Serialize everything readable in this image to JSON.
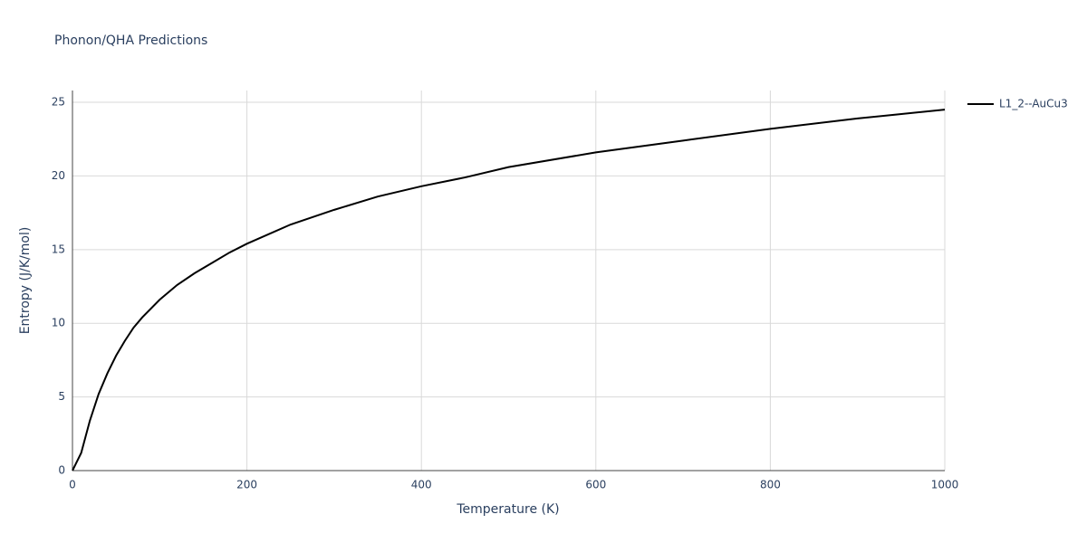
{
  "chart_data": {
    "type": "line",
    "title": "Phonon/QHA Predictions",
    "x_label": "Temperature (K)",
    "y_label": "Entropy (J/K/mol)",
    "x": [
      0,
      10,
      20,
      30,
      40,
      50,
      60,
      70,
      80,
      100,
      120,
      140,
      160,
      180,
      200,
      250,
      300,
      350,
      400,
      450,
      500,
      600,
      700,
      800,
      900,
      1000
    ],
    "series": [
      {
        "name": "L1_2--AuCu3",
        "color": "#000000",
        "values": [
          0,
          1.2,
          3.4,
          5.2,
          6.6,
          7.8,
          8.8,
          9.7,
          10.4,
          11.6,
          12.6,
          13.4,
          14.1,
          14.8,
          15.4,
          16.7,
          17.7,
          18.6,
          19.3,
          19.9,
          20.6,
          21.6,
          22.4,
          23.2,
          23.9,
          24.5
        ]
      }
    ],
    "xlim": [
      0,
      1000
    ],
    "xticks": [
      0,
      200,
      400,
      600,
      800,
      1000
    ],
    "ylim": [
      0,
      25.8
    ],
    "yticks": [
      0,
      5,
      10,
      15,
      20,
      25
    ],
    "grid": true,
    "legend": "right"
  }
}
